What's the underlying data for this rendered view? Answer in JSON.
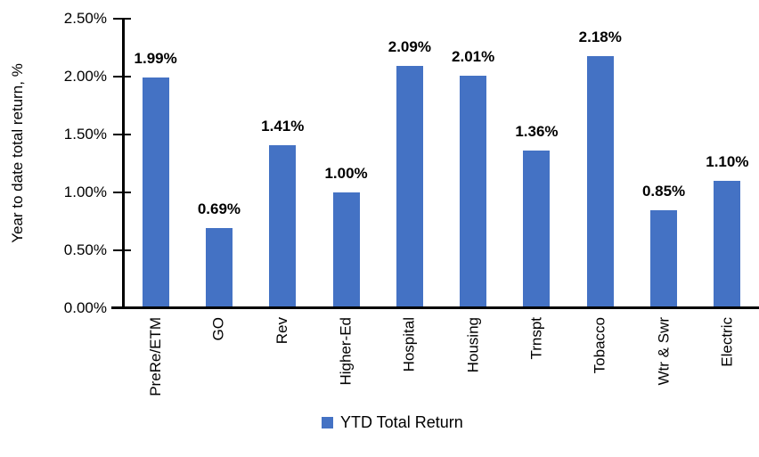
{
  "chart_data": {
    "type": "bar",
    "title": "",
    "ylabel": "Year to date total return, %",
    "xlabel": "",
    "categories": [
      "PreRe/ETM",
      "GO",
      "Rev",
      "Higher-Ed",
      "Hospital",
      "Housing",
      "Trnspt",
      "Tobacco",
      "Wtr & Swr",
      "Electric"
    ],
    "values": [
      1.99,
      0.69,
      1.41,
      1.0,
      2.09,
      2.01,
      1.36,
      2.18,
      0.85,
      1.1
    ],
    "value_labels": [
      "1.99%",
      "0.69%",
      "1.41%",
      "1.00%",
      "2.09%",
      "2.01%",
      "1.36%",
      "2.18%",
      "0.85%",
      "1.10%"
    ],
    "series_name": "YTD Total Return",
    "ylim": [
      0,
      2.5
    ],
    "ytick_step": 0.5,
    "ytick_labels": [
      "0.00%",
      "0.50%",
      "1.00%",
      "1.50%",
      "2.00%",
      "2.50%"
    ],
    "bar_color": "#4472C4",
    "axis_color": "#000000",
    "grid": false,
    "legend_position": "bottom",
    "x_labels_rotation_deg": -90,
    "value_labels_bold": true
  }
}
